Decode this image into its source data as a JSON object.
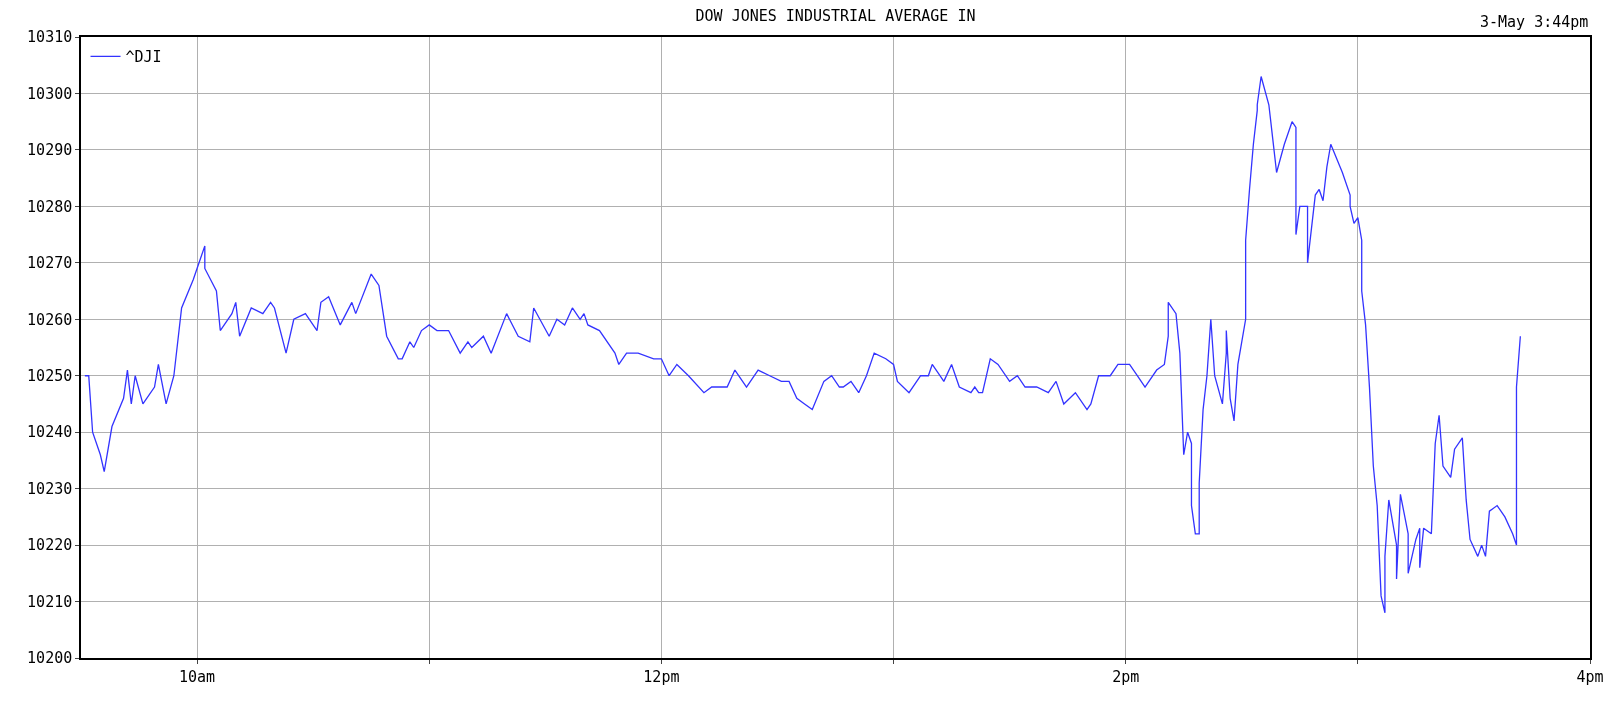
{
  "chart_data": {
    "type": "line",
    "title": "DOW JONES INDUSTRIAL AVERAGE IN",
    "annotations": [
      "3-May 3:44pm"
    ],
    "xlim": [
      "--05-03T09:30",
      "--05-03T16:00"
    ],
    "xticks": [
      {
        "value": "--05-03T10:00",
        "label": "10am"
      },
      {
        "value": "--05-03T11:00",
        "label": null
      },
      {
        "value": "--05-03T12:00",
        "label": "12pm"
      },
      {
        "value": "--05-03T13:00",
        "label": null
      },
      {
        "value": "--05-03T14:00",
        "label": "2pm"
      },
      {
        "value": "--05-03T15:00",
        "label": null
      },
      {
        "value": "--05-03T16:00",
        "label": "4pm"
      }
    ],
    "ylim": [
      10200,
      10310
    ],
    "yticks": [
      10200,
      10210,
      10220,
      10230,
      10240,
      10250,
      10260,
      10270,
      10280,
      10290,
      10300,
      10310
    ],
    "grid": true,
    "legend": "top left",
    "marker": "none",
    "line_style": "solid",
    "series": [
      {
        "name": "^DJI",
        "color": "#3333ff",
        "x": [
          "--05-03T09:31",
          "--05-03T09:32",
          "--05-03T09:33",
          "--05-03T09:35",
          "--05-03T09:36",
          "--05-03T09:38",
          "--05-03T09:41",
          "--05-03T09:42",
          "--05-03T09:43",
          "--05-03T09:44",
          "--05-03T09:46",
          "--05-03T09:49",
          "--05-03T09:50",
          "--05-03T09:52",
          "--05-03T09:54",
          "--05-03T09:56",
          "--05-03T09:59",
          "--05-03T10:02",
          "--05-03T10:02",
          "--05-03T10:05",
          "--05-03T10:06",
          "--05-03T10:09",
          "--05-03T10:10",
          "--05-03T10:11",
          "--05-03T10:14",
          "--05-03T10:17",
          "--05-03T10:19",
          "--05-03T10:20",
          "--05-03T10:23",
          "--05-03T10:25",
          "--05-03T10:28",
          "--05-03T10:31",
          "--05-03T10:32",
          "--05-03T10:34",
          "--05-03T10:37",
          "--05-03T10:40",
          "--05-03T10:41",
          "--05-03T10:45",
          "--05-03T10:47",
          "--05-03T10:49",
          "--05-03T10:52",
          "--05-03T10:53",
          "--05-03T10:55",
          "--05-03T10:56",
          "--05-03T10:58",
          "--05-03T11:00",
          "--05-03T11:02",
          "--05-03T11:05",
          "--05-03T11:08",
          "--05-03T11:10",
          "--05-03T11:11",
          "--05-03T11:14",
          "--05-03T11:16",
          "--05-03T11:20",
          "--05-03T11:23",
          "--05-03T11:26",
          "--05-03T11:27",
          "--05-03T11:31",
          "--05-03T11:33",
          "--05-03T11:35",
          "--05-03T11:37",
          "--05-03T11:39",
          "--05-03T11:40",
          "--05-03T11:41",
          "--05-03T11:44",
          "--05-03T11:48",
          "--05-03T11:49",
          "--05-03T11:51",
          "--05-03T11:54",
          "--05-03T11:58",
          "--05-03T12:00",
          "--05-03T12:02",
          "--05-03T12:04",
          "--05-03T12:07",
          "--05-03T12:11",
          "--05-03T12:13",
          "--05-03T12:14",
          "--05-03T12:17",
          "--05-03T12:19",
          "--05-03T12:22",
          "--05-03T12:25",
          "--05-03T12:28",
          "--05-03T12:31",
          "--05-03T12:33",
          "--05-03T12:35",
          "--05-03T12:37",
          "--05-03T12:39",
          "--05-03T12:42",
          "--05-03T12:44",
          "--05-03T12:46",
          "--05-03T12:47",
          "--05-03T12:49",
          "--05-03T12:51",
          "--05-03T12:53",
          "--05-03T12:55",
          "--05-03T12:58",
          "--05-03T13:00",
          "--05-03T13:01",
          "--05-03T13:04",
          "--05-03T13:07",
          "--05-03T13:09",
          "--05-03T13:10",
          "--05-03T13:12",
          "--05-03T13:13",
          "--05-03T13:15",
          "--05-03T13:17",
          "--05-03T13:20",
          "--05-03T13:21",
          "--05-03T13:22",
          "--05-03T13:23",
          "--05-03T13:25",
          "--05-03T13:27",
          "--05-03T13:30",
          "--05-03T13:32",
          "--05-03T13:34",
          "--05-03T13:37",
          "--05-03T13:40",
          "--05-03T13:42",
          "--05-03T13:44",
          "--05-03T13:47",
          "--05-03T13:50",
          "--05-03T13:51",
          "--05-03T13:53",
          "--05-03T13:56",
          "--05-03T13:58",
          "--05-03T14:01",
          "--05-03T14:03",
          "--05-03T14:05",
          "--05-03T14:08",
          "--05-03T14:10",
          "--05-03T14:11",
          "--05-03T14:11",
          "--05-03T14:13",
          "--05-03T14:14",
          "--05-03T14:15",
          "--05-03T14:16",
          "--05-03T14:17",
          "--05-03T14:17",
          "--05-03T14:18",
          "--05-03T14:19",
          "--05-03T14:19",
          "--05-03T14:20",
          "--05-03T14:21",
          "--05-03T14:22",
          "--05-03T14:23",
          "--05-03T14:25",
          "--05-03T14:26",
          "--05-03T14:26",
          "--05-03T14:27",
          "--05-03T14:28",
          "--05-03T14:29",
          "--05-03T14:31",
          "--05-03T14:31",
          "--05-03T14:32",
          "--05-03T14:33",
          "--05-03T14:34",
          "--05-03T14:34",
          "--05-03T14:35",
          "--05-03T14:37",
          "--05-03T14:38",
          "--05-03T14:39",
          "--05-03T14:41",
          "--05-03T14:43",
          "--05-03T14:44",
          "--05-03T14:44",
          "--05-03T14:45",
          "--05-03T14:47",
          "--05-03T14:47",
          "--05-03T14:49",
          "--05-03T14:50",
          "--05-03T14:51",
          "--05-03T14:52",
          "--05-03T14:53",
          "--05-03T14:56",
          "--05-03T14:58",
          "--05-03T14:58",
          "--05-03T14:59",
          "--05-03T15:00",
          "--05-03T15:01",
          "--05-03T15:01",
          "--05-03T15:02",
          "--05-03T15:03",
          "--05-03T15:04",
          "--05-03T15:05",
          "--05-03T15:06",
          "--05-03T15:07",
          "--05-03T15:07",
          "--05-03T15:08",
          "--05-03T15:10",
          "--05-03T15:10",
          "--05-03T15:11",
          "--05-03T15:13",
          "--05-03T15:13",
          "--05-03T15:15",
          "--05-03T15:16",
          "--05-03T15:16",
          "--05-03T15:17",
          "--05-03T15:19",
          "--05-03T15:20",
          "--05-03T15:21",
          "--05-03T15:22",
          "--05-03T15:24",
          "--05-03T15:25",
          "--05-03T15:27",
          "--05-03T15:28",
          "--05-03T15:29",
          "--05-03T15:31",
          "--05-03T15:32",
          "--05-03T15:33",
          "--05-03T15:34",
          "--05-03T15:36",
          "--05-03T15:38",
          "--05-03T15:40",
          "--05-03T15:41",
          "--05-03T15:41",
          "--05-03T15:41",
          "--05-03T15:42"
        ],
        "values": [
          10250,
          10250,
          10240,
          10236,
          10233,
          10241,
          10246,
          10251,
          10245,
          10250,
          10245,
          10248,
          10252,
          10245,
          10250,
          10262,
          10267,
          10273,
          10269,
          10265,
          10258,
          10261,
          10263,
          10257,
          10262,
          10261,
          10263,
          10262,
          10254,
          10260,
          10261,
          10258,
          10263,
          10264,
          10259,
          10263,
          10261,
          10268,
          10266,
          10257,
          10253,
          10253,
          10256,
          10255,
          10258,
          10259,
          10258,
          10258,
          10254,
          10256,
          10255,
          10257,
          10254,
          10261,
          10257,
          10256,
          10262,
          10257,
          10260,
          10259,
          10262,
          10260,
          10261,
          10259,
          10258,
          10254,
          10252,
          10254,
          10254,
          10253,
          10253,
          10250,
          10252,
          10250,
          10247,
          10248,
          10248,
          10248,
          10251,
          10248,
          10251,
          10250,
          10249,
          10249,
          10246,
          10245,
          10244,
          10249,
          10250,
          10248,
          10248,
          10249,
          10247,
          10250,
          10254,
          10253,
          10252,
          10249,
          10247,
          10250,
          10250,
          10252,
          10250,
          10249,
          10252,
          10248,
          10247,
          10248,
          10247,
          10247,
          10253,
          10252,
          10249,
          10250,
          10248,
          10248,
          10247,
          10249,
          10245,
          10247,
          10244,
          10245,
          10250,
          10250,
          10252,
          10252,
          10250,
          10248,
          10251,
          10252,
          10257,
          10263,
          10261,
          10254,
          10236,
          10240,
          10238,
          10227,
          10222,
          10222,
          10231,
          10244,
          10250,
          10260,
          10250,
          10245,
          10254,
          10258,
          10246,
          10242,
          10252,
          10260,
          10274,
          10283,
          10291,
          10297,
          10298,
          10303,
          10298,
          10292,
          10286,
          10291,
          10295,
          10294,
          10275,
          10280,
          10280,
          10270,
          10282,
          10283,
          10281,
          10287,
          10291,
          10286,
          10282,
          10280,
          10277,
          10278,
          10274,
          10265,
          10259,
          10248,
          10234,
          10227,
          10211,
          10208,
          10218,
          10228,
          10220,
          10214,
          10229,
          10222,
          10215,
          10221,
          10223,
          10216,
          10223,
          10222,
          10238,
          10243,
          10234,
          10232,
          10237,
          10239,
          10228,
          10221,
          10218,
          10220,
          10218,
          10226,
          10227,
          10225,
          10222,
          10220,
          10230,
          10248,
          10257
        ]
      }
    ]
  }
}
